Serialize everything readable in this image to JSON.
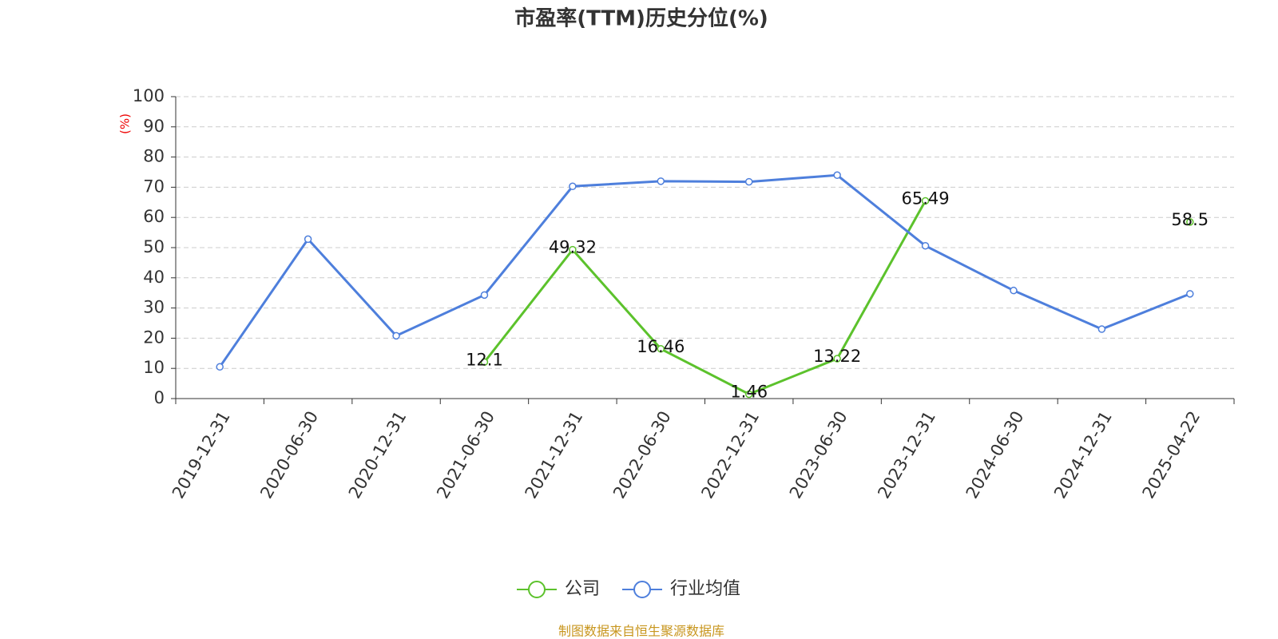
{
  "chart_data": {
    "type": "line",
    "title": "市盈率(TTM)历史分位(%)",
    "y_label": "(%)",
    "source": "制图数据来自恒生聚源数据库",
    "categories": [
      "2019-12-31",
      "2020-06-30",
      "2020-12-31",
      "2021-06-30",
      "2021-12-31",
      "2022-06-30",
      "2022-12-31",
      "2023-06-30",
      "2023-12-31",
      "2024-06-30",
      "2024-12-31",
      "2025-04-22"
    ],
    "series": [
      {
        "name": "公司",
        "color": "#5cc22c",
        "show_labels": true,
        "values": [
          null,
          null,
          null,
          12.1,
          49.32,
          16.46,
          1.46,
          13.22,
          65.49,
          null,
          null,
          58.5
        ]
      },
      {
        "name": "行业均值",
        "color": "#4e7fdc",
        "show_labels": false,
        "values": [
          10.5,
          52.8,
          20.8,
          34.3,
          70.3,
          72,
          71.8,
          74,
          50.6,
          35.8,
          23,
          34.7
        ]
      }
    ],
    "ylim": [
      0,
      100
    ],
    "yticks": [
      0,
      10,
      20,
      30,
      40,
      50,
      60,
      70,
      80,
      90,
      100
    ],
    "grid": true,
    "legend": "bottom"
  }
}
